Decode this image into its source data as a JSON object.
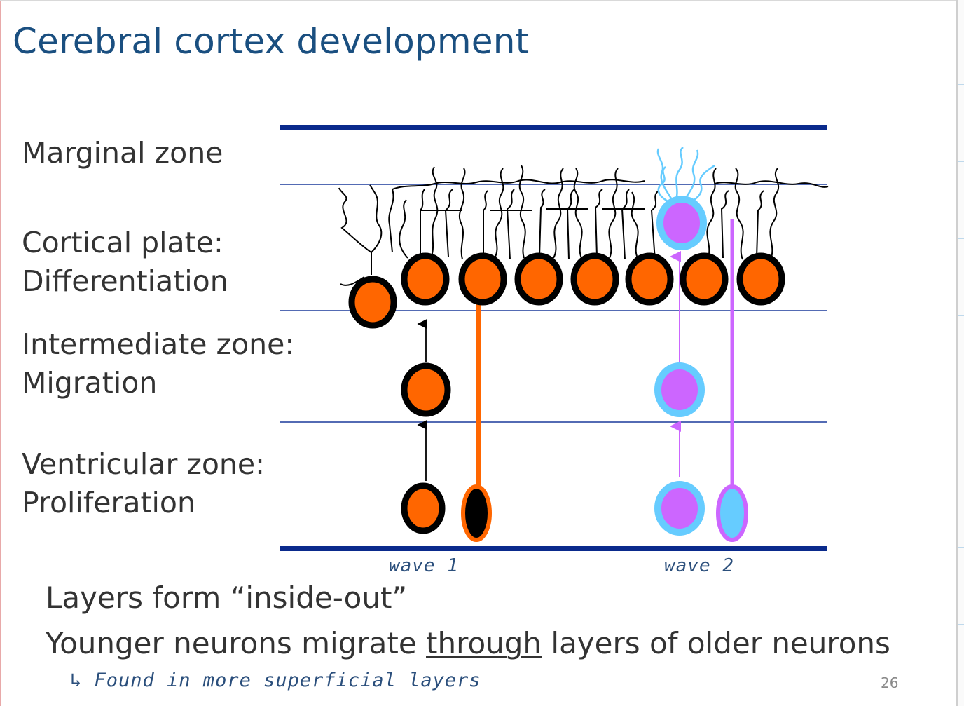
{
  "slide": {
    "title": "Cerebral cortex development",
    "page_number": "26"
  },
  "zones": {
    "marginal": "Marginal zone",
    "cortical_line1": "Cortical plate:",
    "cortical_line2": "Differentiation",
    "intermediate_line1": "Intermediate zone:",
    "intermediate_line2": "Migration",
    "ventricular_line1": "Ventricular zone:",
    "ventricular_line2": "Proliferation"
  },
  "annotations": {
    "wave1": "wave 1",
    "wave2": "wave 2",
    "note": "↳ Found in more superficial layers"
  },
  "text": {
    "line1": "Layers form “inside-out”",
    "line2_before": "Younger neurons migrate ",
    "line2_emph": "through",
    "line2_after": " layers of older neurons"
  },
  "colors": {
    "title": "#1a4f80",
    "boundary_thick": "#0a2a8c",
    "boundary_thin": "#1a3a9c",
    "wave1_neuron": "#ff6600",
    "wave2_neuron_fill": "#cc66ff",
    "wave2_neuron_ring": "#66ccff",
    "handwriting": "#2b4f7c"
  }
}
